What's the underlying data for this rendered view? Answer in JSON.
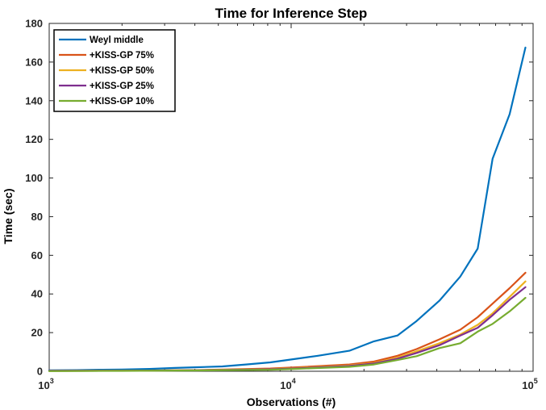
{
  "chart_data": {
    "type": "line",
    "title": "Time for Inference Step",
    "xlabel": "Observations (#)",
    "ylabel": "Time (sec)",
    "xscale": "log",
    "xlim": [
      1000,
      100000
    ],
    "ylim": [
      0,
      180
    ],
    "x_tick_labels": [
      {
        "base": "10",
        "exp": "3",
        "value": 1000
      },
      {
        "base": "10",
        "exp": "4",
        "value": 10000
      },
      {
        "base": "10",
        "exp": "5",
        "value": 100000
      }
    ],
    "y_ticks": [
      0,
      20,
      40,
      60,
      80,
      100,
      120,
      140,
      160,
      180
    ],
    "grid": false,
    "legend_position": "top-left",
    "series": [
      {
        "name": "Weyl middle",
        "color": "#0072BD",
        "x": [
          1000,
          1300,
          1600,
          2000,
          2600,
          3300,
          4100,
          5200,
          6500,
          8200,
          10300,
          12900,
          17400,
          22000,
          27500,
          33000,
          41000,
          50000,
          59000,
          68000,
          80000,
          93000
        ],
        "y": [
          0.5,
          0.6,
          0.8,
          0.9,
          1.2,
          1.7,
          2.1,
          2.5,
          3.5,
          4.6,
          6.3,
          8.0,
          10.6,
          15.5,
          18.5,
          26,
          36.5,
          49,
          63.5,
          110,
          133,
          167.5
        ]
      },
      {
        "name": "+KISS-GP 75%",
        "color": "#D95319",
        "x": [
          1000,
          2000,
          4100,
          8200,
          10300,
          17400,
          22000,
          27500,
          33000,
          41000,
          50000,
          59000,
          68000,
          80000,
          93000
        ],
        "y": [
          0.2,
          0.3,
          0.6,
          1.4,
          2.0,
          3.5,
          5.0,
          8.0,
          11.5,
          16.5,
          21.5,
          28,
          35,
          43,
          51
        ]
      },
      {
        "name": "+KISS-GP 50%",
        "color": "#EDB120",
        "x": [
          1000,
          2000,
          4100,
          8200,
          10300,
          17400,
          22000,
          27500,
          33000,
          41000,
          50000,
          59000,
          68000,
          80000,
          93000
        ],
        "y": [
          0.2,
          0.3,
          0.5,
          1.1,
          1.6,
          3.0,
          4.3,
          7.0,
          10.3,
          14.5,
          19.0,
          24.0,
          30.0,
          38.5,
          46.5
        ]
      },
      {
        "name": "+KISS-GP 25%",
        "color": "#7E2F8E",
        "x": [
          1000,
          2000,
          4100,
          8200,
          10300,
          17400,
          22000,
          27500,
          33000,
          41000,
          50000,
          59000,
          68000,
          80000,
          93000
        ],
        "y": [
          0.2,
          0.3,
          0.5,
          1.0,
          1.4,
          2.7,
          4.0,
          6.5,
          9.5,
          13.5,
          18.5,
          22.5,
          29.0,
          37.0,
          43.5
        ]
      },
      {
        "name": "+KISS-GP 10%",
        "color": "#77AC30",
        "x": [
          1000,
          2000,
          4100,
          8200,
          10300,
          17400,
          22000,
          27500,
          33000,
          41000,
          50000,
          59000,
          68000,
          80000,
          93000
        ],
        "y": [
          0.1,
          0.2,
          0.4,
          0.8,
          1.2,
          2.3,
          3.5,
          5.8,
          7.8,
          12.0,
          14.5,
          20.5,
          24.5,
          31.0,
          38.0
        ]
      }
    ]
  }
}
